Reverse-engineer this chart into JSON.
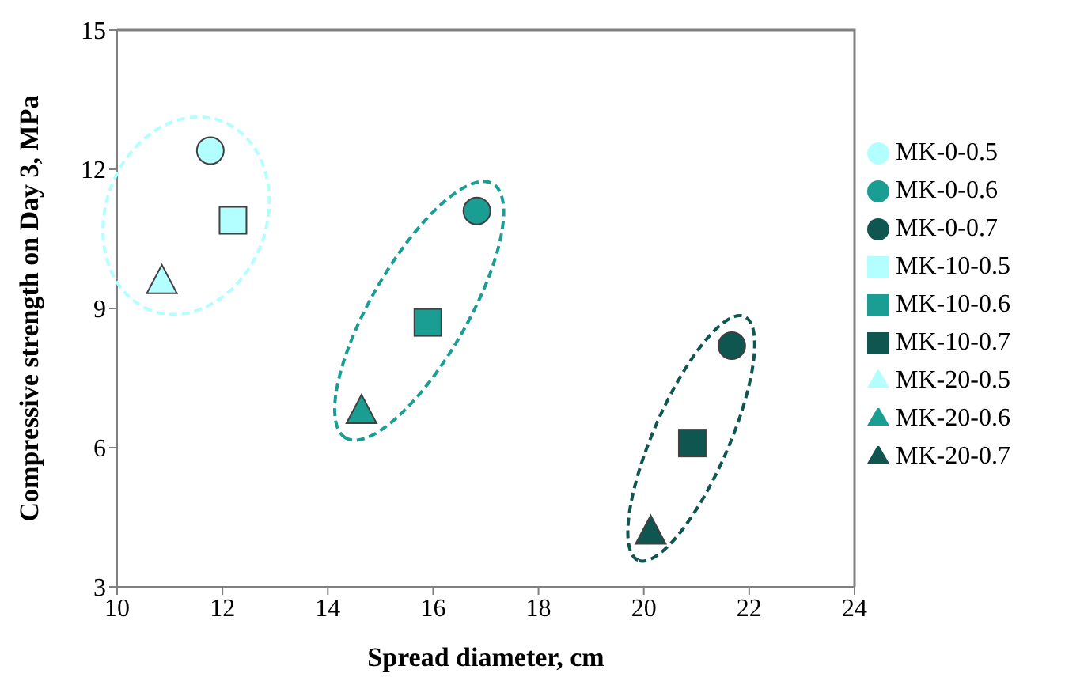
{
  "chart_data": {
    "type": "scatter",
    "xlabel": "Spread diameter, cm",
    "ylabel": "Compressive strength on Day 3, MPa",
    "xlim": [
      10,
      24
    ],
    "xticks": [
      10,
      12,
      14,
      16,
      18,
      20,
      22,
      24
    ],
    "ylim": [
      3,
      15
    ],
    "yticks": [
      3,
      6,
      9,
      12,
      15
    ],
    "grid": false,
    "legend": "right",
    "series": [
      {
        "name": "MK-0-0.5",
        "marker": "circle",
        "color": "#b3ffff",
        "x": [
          11.77
        ],
        "values": [
          12.4
        ]
      },
      {
        "name": "MK-0-0.6",
        "marker": "circle",
        "color": "#1a9e94",
        "x": [
          16.83
        ],
        "values": [
          11.1
        ]
      },
      {
        "name": "MK-0-0.7",
        "marker": "circle",
        "color": "#0f5550",
        "x": [
          21.67
        ],
        "values": [
          8.2
        ]
      },
      {
        "name": "MK-10-0.5",
        "marker": "square",
        "color": "#b3ffff",
        "x": [
          12.2
        ],
        "values": [
          10.9
        ]
      },
      {
        "name": "MK-10-0.6",
        "marker": "square",
        "color": "#1a9e94",
        "x": [
          15.9
        ],
        "values": [
          8.7
        ]
      },
      {
        "name": "MK-10-0.7",
        "marker": "square",
        "color": "#0f5550",
        "x": [
          20.92
        ],
        "values": [
          6.1
        ]
      },
      {
        "name": "MK-20-0.5",
        "marker": "triangle",
        "color": "#b3ffff",
        "x": [
          10.85
        ],
        "values": [
          9.6
        ]
      },
      {
        "name": "MK-20-0.6",
        "marker": "triangle",
        "color": "#1a9e94",
        "x": [
          14.64
        ],
        "values": [
          6.8
        ]
      },
      {
        "name": "MK-20-0.7",
        "marker": "triangle",
        "color": "#0f5550",
        "x": [
          20.13
        ],
        "values": [
          4.2
        ]
      }
    ]
  }
}
